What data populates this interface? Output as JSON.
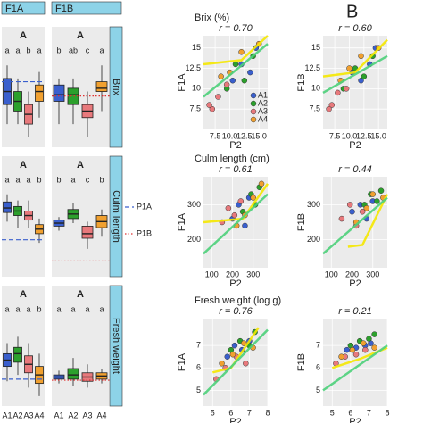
{
  "figure": {
    "panel_b": "B",
    "columns": [
      "F1A",
      "F1B"
    ],
    "traits": [
      "Brix",
      "Culm length",
      "Fresh weight"
    ],
    "x_labels": [
      "A1",
      "A2",
      "A3",
      "A4"
    ],
    "legend": [
      {
        "name": "P1A",
        "color": "#3a5fcd",
        "style": "dashed"
      },
      {
        "name": "P1B",
        "color": "#e03030",
        "style": "dotted"
      }
    ]
  },
  "chart_data": [
    {
      "type": "box",
      "top_label": "A",
      "letters": [
        "a",
        "a",
        "b",
        "a"
      ],
      "colors": [
        "#3a5fcd",
        "#2ca02c",
        "#e8797c",
        "#f0a030"
      ],
      "ylim": [
        4,
        17
      ],
      "values": [
        [
          7,
          10,
          12,
          14,
          16
        ],
        [
          7,
          9,
          10.5,
          12,
          14
        ],
        [
          5,
          7,
          8.5,
          10,
          12
        ],
        [
          8,
          10.5,
          12,
          13,
          15
        ]
      ],
      "reference": 13.5,
      "reference_color": "#3a5fcd",
      "reference_style": "dashed"
    },
    {
      "type": "box",
      "top_label": "A",
      "letters": [
        "b",
        "ab",
        "c",
        "a"
      ],
      "colors": [
        "#3a5fcd",
        "#2ca02c",
        "#e8797c",
        "#f0a030"
      ],
      "ylim": [
        4,
        17
      ],
      "values": [
        [
          7,
          10.5,
          11.5,
          13,
          14
        ],
        [
          7,
          10,
          11.5,
          12.5,
          14
        ],
        [
          5,
          8,
          9,
          10,
          12
        ],
        [
          9,
          12,
          12.5,
          13.5,
          16
        ]
      ],
      "reference": 11.3,
      "reference_color": "#e03030",
      "reference_style": "dotted"
    },
    {
      "type": "box",
      "top_label": "A",
      "letters": [
        "a",
        "a",
        "a",
        "b"
      ],
      "colors": [
        "#3a5fcd",
        "#2ca02c",
        "#e8797c",
        "#f0a030"
      ],
      "ylim": [
        100,
        380
      ],
      "values": [
        [
          270,
          300,
          315,
          335,
          360
        ],
        [
          250,
          290,
          305,
          320,
          340
        ],
        [
          250,
          275,
          290,
          305,
          340
        ],
        [
          200,
          230,
          245,
          260,
          280
        ]
      ],
      "reference": 210,
      "reference_color": "#3a5fcd",
      "reference_style": "dashed"
    },
    {
      "type": "box",
      "top_label": "A",
      "letters": [
        "b",
        "a",
        "c",
        "b"
      ],
      "colors": [
        "#3a5fcd",
        "#2ca02c",
        "#e8797c",
        "#f0a030"
      ],
      "ylim": [
        100,
        380
      ],
      "values": [
        [
          240,
          255,
          265,
          275,
          285
        ],
        [
          265,
          280,
          295,
          310,
          330
        ],
        [
          180,
          215,
          230,
          255,
          270
        ],
        [
          220,
          250,
          270,
          290,
          310
        ]
      ],
      "reference": 140,
      "reference_color": "#e03030",
      "reference_style": "dotted"
    },
    {
      "type": "box",
      "top_label": "A",
      "letters": [
        "a",
        "a",
        "a",
        "b"
      ],
      "colors": [
        "#3a5fcd",
        "#2ca02c",
        "#e8797c",
        "#f0a030"
      ],
      "ylim": [
        4.5,
        8.5
      ],
      "values": [
        [
          5.5,
          6.2,
          6.5,
          6.8,
          7.3
        ],
        [
          5.8,
          6.4,
          6.8,
          7.1,
          7.6
        ],
        [
          5.2,
          5.9,
          6.3,
          6.7,
          7.3
        ],
        [
          4.8,
          5.4,
          5.8,
          6.2,
          6.8
        ]
      ],
      "reference": 5.6,
      "reference_color": "#3a5fcd",
      "reference_style": "dashed"
    },
    {
      "type": "box",
      "top_label": "A",
      "letters": [
        "a",
        "a",
        "a",
        "a"
      ],
      "colors": [
        "#3a5fcd",
        "#2ca02c",
        "#e8797c",
        "#f0a030"
      ],
      "ylim": [
        4.5,
        8.5
      ],
      "values": [
        [
          5.4,
          5.6,
          5.7,
          5.8,
          6
        ],
        [
          5.3,
          5.6,
          5.8,
          6.1,
          6.6
        ],
        [
          5.2,
          5.5,
          5.7,
          5.9,
          6.3
        ],
        [
          5.4,
          5.6,
          5.75,
          5.9,
          6.1
        ]
      ],
      "reference": 5.55,
      "reference_color": "#e03030",
      "reference_style": "dotted"
    },
    {
      "type": "scatter",
      "title": "Brix (%)",
      "annotation": "r = 0.70",
      "xlabel": "P2",
      "ylabel": "F1A",
      "legend": "bottom-right",
      "xlim": [
        5.5,
        16.5
      ],
      "ylim": [
        5,
        16.5
      ],
      "xticks": [
        7.5,
        {
          "value": 10,
          "label": "10.0"
        },
        12.5,
        {
          "value": 15,
          "label": "15.0"
        }
      ],
      "yticks": [
        7.5,
        10,
        12.5,
        15
      ],
      "series": [
        {
          "name": "A1",
          "color": "#3a5fcd",
          "x": [
            10.5,
            12,
            13.5,
            14.5
          ],
          "values": [
            11,
            13,
            12,
            15
          ]
        },
        {
          "name": "A2",
          "color": "#2ca02c",
          "x": [
            11,
            12.5,
            9.5,
            14
          ],
          "values": [
            13,
            11,
            10,
            14
          ]
        },
        {
          "name": "A3",
          "color": "#e8797c",
          "x": [
            7,
            8,
            6.5,
            9.5
          ],
          "values": [
            7.5,
            9,
            8,
            10.5
          ]
        },
        {
          "name": "A4",
          "color": "#f0a030",
          "x": [
            12,
            10,
            15,
            8.5
          ],
          "values": [
            14.5,
            12,
            15.5,
            11.5
          ]
        }
      ],
      "lines": [
        {
          "color": "#f5e800",
          "x": [
            5.5,
            12,
            16.5
          ],
          "values": [
            13,
            13.5,
            16.5
          ]
        },
        {
          "color": "#4cd07a",
          "x": [
            5.5,
            16.5
          ],
          "values": [
            9,
            15.5
          ]
        }
      ]
    },
    {
      "type": "scatter",
      "annotation": "r = 0.60",
      "xlabel": "P2",
      "ylabel": "F1B",
      "xlim": [
        5.5,
        16.5
      ],
      "ylim": [
        5,
        16.5
      ],
      "xticks": [
        7.5,
        {
          "value": 10,
          "label": "10.0"
        },
        12.5,
        {
          "value": 15,
          "label": "15.0"
        }
      ],
      "yticks": [
        7.5,
        10,
        12.5,
        15
      ],
      "series": [
        {
          "color": "#3a5fcd",
          "x": [
            10.5,
            12,
            13.5,
            14.5
          ],
          "values": [
            12,
            11,
            13,
            15
          ]
        },
        {
          "color": "#2ca02c",
          "x": [
            11,
            12.5,
            9,
            14
          ],
          "values": [
            12.5,
            11.5,
            10,
            14
          ]
        },
        {
          "color": "#e8797c",
          "x": [
            7,
            8,
            6.5,
            9.5
          ],
          "values": [
            8,
            9.5,
            7.5,
            10
          ]
        },
        {
          "color": "#f0a030",
          "x": [
            12,
            10,
            15,
            8.5
          ],
          "values": [
            14,
            12.5,
            15,
            11
          ]
        }
      ],
      "lines": [
        {
          "color": "#f5e800",
          "x": [
            5.5,
            11,
            16.5
          ],
          "values": [
            11.5,
            12,
            16
          ]
        },
        {
          "color": "#4cd07a",
          "x": [
            5.5,
            16.5
          ],
          "values": [
            9.5,
            14
          ]
        }
      ]
    },
    {
      "type": "scatter",
      "title": "Culm length (cm)",
      "annotation": "r = 0.61",
      "xlabel": "P2",
      "ylabel": "F1A",
      "xlim": [
        60,
        370
      ],
      "ylim": [
        120,
        380
      ],
      "xticks": [
        100,
        200,
        300
      ],
      "yticks": [
        200,
        300
      ],
      "series": [
        {
          "color": "#3a5fcd",
          "x": [
            200,
            230,
            260,
            280
          ],
          "values": [
            260,
            300,
            240,
            320
          ]
        },
        {
          "color": "#2ca02c",
          "x": [
            250,
            290,
            310,
            330
          ],
          "values": [
            280,
            330,
            300,
            350
          ]
        },
        {
          "color": "#e8797c",
          "x": [
            150,
            180,
            210,
            240
          ],
          "values": [
            250,
            290,
            270,
            310
          ]
        },
        {
          "color": "#f0a030",
          "x": [
            220,
            260,
            300,
            340
          ],
          "values": [
            240,
            270,
            320,
            360
          ]
        }
      ],
      "lines": [
        {
          "color": "#f5e800",
          "x": [
            60,
            250,
            370
          ],
          "values": [
            250,
            260,
            360
          ]
        },
        {
          "color": "#4cd07a",
          "x": [
            60,
            370
          ],
          "values": [
            160,
            330
          ]
        }
      ]
    },
    {
      "type": "scatter",
      "annotation": "r = 0.44",
      "xlabel": "P2",
      "ylabel": "F1B",
      "xlim": [
        60,
        370
      ],
      "ylim": [
        120,
        380
      ],
      "xticks": [
        100,
        200,
        300
      ],
      "yticks": [
        200,
        300
      ],
      "series": [
        {
          "color": "#3a5fcd",
          "x": [
            200,
            240,
            270,
            300
          ],
          "values": [
            280,
            300,
            260,
            310
          ]
        },
        {
          "color": "#2ca02c",
          "x": [
            260,
            290,
            320,
            340
          ],
          "values": [
            300,
            330,
            310,
            340
          ]
        },
        {
          "color": "#e8797c",
          "x": [
            150,
            190,
            220,
            250
          ],
          "values": [
            260,
            300,
            240,
            280
          ]
        },
        {
          "color": "#f0a030",
          "x": [
            220,
            270,
            300,
            350
          ],
          "values": [
            250,
            290,
            330,
            320
          ]
        }
      ],
      "lines": [
        {
          "color": "#f5e800",
          "x": [
            180,
            250,
            370
          ],
          "values": [
            180,
            185,
            330
          ]
        },
        {
          "color": "#4cd07a",
          "x": [
            60,
            370
          ],
          "values": [
            160,
            320
          ]
        }
      ]
    },
    {
      "type": "scatter",
      "title": "Fresh weight (log g)",
      "annotation": "r = 0.76",
      "xlabel": "P2",
      "ylabel": "F1A",
      "xlim": [
        4.5,
        8
      ],
      "ylim": [
        4.3,
        8.2
      ],
      "xticks": [
        5,
        6,
        7,
        8
      ],
      "yticks": [
        5,
        6,
        7
      ],
      "series": [
        {
          "color": "#3a5fcd",
          "x": [
            5.8,
            6.2,
            6.6,
            7
          ],
          "values": [
            6.5,
            7,
            6.8,
            7.2
          ]
        },
        {
          "color": "#2ca02c",
          "x": [
            6,
            6.5,
            7,
            7.3
          ],
          "values": [
            6.8,
            7.2,
            7,
            7.6
          ]
        },
        {
          "color": "#e8797c",
          "x": [
            5.2,
            5.7,
            6.3,
            6.8
          ],
          "values": [
            5.5,
            6,
            6.5,
            6.2
          ]
        },
        {
          "color": "#f0a030",
          "x": [
            5.5,
            6.1,
            6.7,
            7.2
          ],
          "values": [
            6.2,
            6.6,
            7.1,
            6.9
          ]
        }
      ],
      "lines": [
        {
          "color": "#f5e800",
          "x": [
            5,
            6,
            7.5
          ],
          "values": [
            5.8,
            6,
            7.8
          ]
        },
        {
          "color": "#4cd07a",
          "x": [
            4.5,
            8
          ],
          "values": [
            4.8,
            7.7
          ]
        }
      ]
    },
    {
      "type": "scatter",
      "annotation": "r = 0.21",
      "xlabel": "P2",
      "ylabel": "F1B",
      "xlim": [
        4.5,
        8
      ],
      "ylim": [
        4.3,
        8.2
      ],
      "xticks": [
        5,
        6,
        7,
        8
      ],
      "yticks": [
        5,
        6,
        7
      ],
      "series": [
        {
          "color": "#3a5fcd",
          "x": [
            5.8,
            6.3,
            6.8,
            7.1
          ],
          "values": [
            6.8,
            6.9,
            7,
            7.1
          ]
        },
        {
          "color": "#2ca02c",
          "x": [
            6,
            6.5,
            7,
            7.3
          ],
          "values": [
            7,
            7.2,
            7.3,
            7.5
          ]
        },
        {
          "color": "#e8797c",
          "x": [
            5.2,
            5.7,
            6.3,
            6.8
          ],
          "values": [
            6.2,
            6.5,
            6.6,
            6.8
          ]
        },
        {
          "color": "#f0a030",
          "x": [
            5.5,
            6.1,
            6.7,
            7.3
          ],
          "values": [
            6.5,
            6.8,
            7.1,
            6.9
          ]
        }
      ],
      "lines": [
        {
          "color": "#f5e800",
          "x": [
            5,
            6.5,
            8
          ],
          "values": [
            6,
            6.4,
            6.9
          ]
        },
        {
          "color": "#4cd07a",
          "x": [
            4.5,
            8
          ],
          "values": [
            5,
            7
          ]
        }
      ]
    }
  ]
}
